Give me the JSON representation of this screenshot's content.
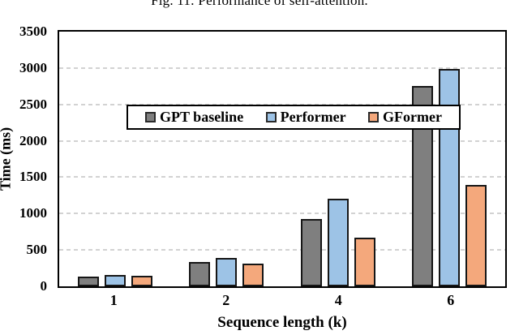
{
  "caption": "Fig. 11: Performance of self-attention.",
  "chart_data": {
    "type": "bar",
    "title": "Fig. 11: Performance of self-attention.",
    "categories": [
      "1",
      "2",
      "4",
      "6"
    ],
    "series": [
      {
        "name": "GPT baseline",
        "color": "#7F7F7F",
        "values": [
          130,
          340,
          930,
          2750
        ]
      },
      {
        "name": "Performer",
        "color": "#9DC3E6",
        "values": [
          160,
          390,
          1200,
          2990
        ]
      },
      {
        "name": "GFormer",
        "color": "#F4A87C",
        "values": [
          150,
          310,
          665,
          1390
        ]
      }
    ],
    "xlabel": "Sequence length (k)",
    "ylabel": "Time (ms)",
    "ylim": [
      0,
      3500
    ],
    "yticks": [
      0,
      500,
      1000,
      1500,
      2000,
      2500,
      3000,
      3500
    ],
    "grid": "horizontal-dashed",
    "gridline_color": "#d2d2d2",
    "frame_color": "#000000",
    "bar_border_color": "#161616",
    "legend_position": "inside-top-left"
  }
}
